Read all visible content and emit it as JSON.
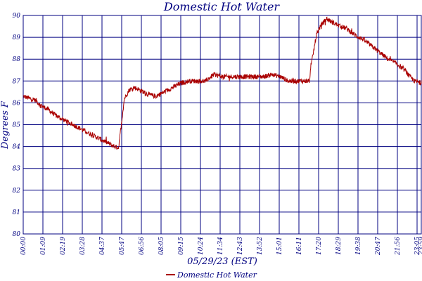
{
  "chart_data": {
    "type": "line",
    "title": "Domestic Hot Water",
    "xlabel": "05/29/23 (EST)",
    "ylabel": "Degrees F",
    "ylim": [
      80,
      90
    ],
    "yticks": [
      "80",
      "81",
      "82",
      "83",
      "84",
      "85",
      "86",
      "87",
      "88",
      "89",
      "90"
    ],
    "ytick_labels": [
      "80",
      "81",
      "82",
      "83",
      "84",
      "85",
      "86",
      "87",
      "88",
      "89",
      "90"
    ],
    "xticks": [
      "00:00",
      "01:09",
      "02:19",
      "03:28",
      "04:37",
      "05:47",
      "06:56",
      "08:05",
      "09:15",
      "10:24",
      "11:34",
      "12:43",
      "13:52",
      "15:01",
      "16:11",
      "17:20",
      "18:29",
      "19:38",
      "20:47",
      "21:56",
      "23:05",
      "23:59"
    ],
    "xrange_hours": [
      0,
      24
    ],
    "grid": true,
    "legend": "bottom-center",
    "colors": {
      "line": "#aa0000",
      "grid": "#000080",
      "text": "#000080"
    },
    "series": [
      {
        "name": "Domestic Hot Water",
        "x_hours": [
          0.0,
          0.4,
          0.8,
          1.0,
          1.5,
          2.0,
          2.5,
          3.0,
          3.5,
          4.0,
          4.5,
          5.0,
          5.5,
          5.75,
          5.85,
          6.1,
          6.4,
          6.7,
          7.0,
          7.5,
          8.0,
          8.5,
          9.0,
          9.5,
          10.0,
          10.5,
          11.0,
          11.5,
          12.0,
          12.5,
          13.0,
          13.5,
          14.0,
          14.5,
          15.0,
          15.5,
          16.0,
          16.5,
          17.0,
          17.25,
          17.4,
          17.7,
          18.0,
          18.3,
          18.6,
          19.0,
          19.5,
          20.0,
          20.5,
          21.0,
          21.5,
          22.0,
          22.5,
          23.0,
          23.3,
          23.6,
          24.0
        ],
        "values": [
          86.3,
          86.2,
          86.1,
          85.9,
          85.7,
          85.4,
          85.2,
          85.0,
          84.8,
          84.6,
          84.4,
          84.2,
          84.0,
          83.95,
          84.6,
          86.2,
          86.6,
          86.7,
          86.6,
          86.4,
          86.3,
          86.5,
          86.7,
          86.9,
          87.0,
          87.0,
          87.0,
          87.3,
          87.2,
          87.2,
          87.2,
          87.2,
          87.2,
          87.2,
          87.3,
          87.2,
          87.0,
          87.0,
          87.0,
          87.0,
          87.9,
          89.2,
          89.6,
          89.85,
          89.7,
          89.55,
          89.4,
          89.1,
          88.9,
          88.6,
          88.3,
          88.0,
          87.8,
          87.5,
          87.2,
          87.0,
          86.9
        ]
      }
    ]
  }
}
